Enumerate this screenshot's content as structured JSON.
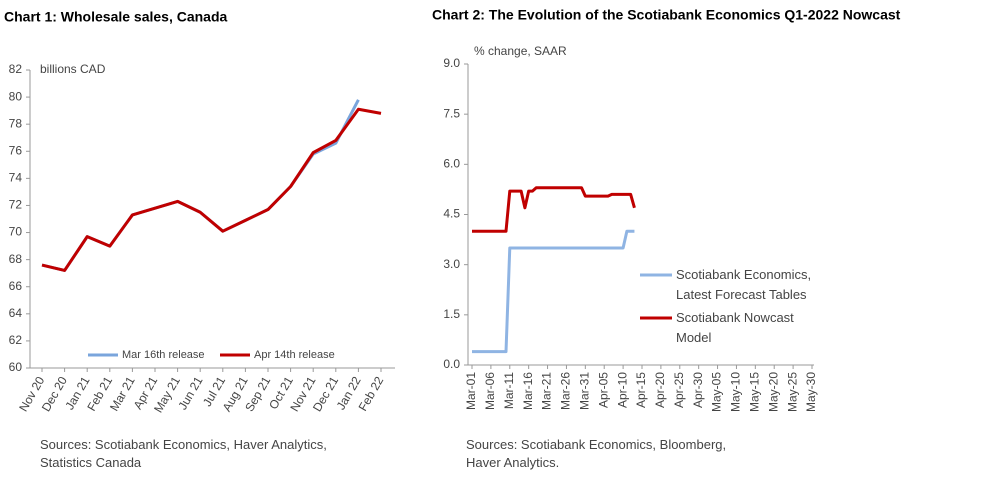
{
  "chart_data": [
    {
      "type": "line",
      "title": "Chart 1: Wholesale sales, Canada",
      "y_label": "billions CAD",
      "categories": [
        "Nov 20",
        "Dec 20",
        "Jan 21",
        "Feb 21",
        "Mar 21",
        "Apr 21",
        "May 21",
        "Jun 21",
        "Jul 21",
        "Aug 21",
        "Sep 21",
        "Oct 21",
        "Nov 21",
        "Dec 21",
        "Jan 22",
        "Feb 22"
      ],
      "series": [
        {
          "name": "Mar 16th release",
          "color": "#7aa5dc",
          "values": [
            67.6,
            67.2,
            69.7,
            69.0,
            71.3,
            71.8,
            72.3,
            71.5,
            70.1,
            70.9,
            71.7,
            73.4,
            75.8,
            76.6,
            79.8,
            null
          ]
        },
        {
          "name": "Apr 14th release",
          "color": "#c00000",
          "values": [
            67.6,
            67.2,
            69.7,
            69.0,
            71.3,
            71.8,
            72.3,
            71.5,
            70.1,
            70.9,
            71.7,
            73.4,
            75.9,
            76.8,
            79.1,
            78.8
          ]
        }
      ],
      "ylim": [
        60,
        82
      ],
      "yticks": [
        60,
        62,
        64,
        66,
        68,
        70,
        72,
        74,
        76,
        78,
        80,
        82
      ],
      "source": "Sources: Scotiabank Economics, Haver Analytics, Statistics Canada"
    },
    {
      "type": "line",
      "title": "Chart 2: The Evolution of the Scotiabank Economics Q1-2022 Nowcast",
      "y_label": "% change, SAAR",
      "x": [
        "Mar-01",
        "Mar-02",
        "Mar-03",
        "Mar-04",
        "Mar-05",
        "Mar-06",
        "Mar-07",
        "Mar-08",
        "Mar-09",
        "Mar-10",
        "Mar-11",
        "Mar-12",
        "Mar-13",
        "Mar-14",
        "Mar-15",
        "Mar-16",
        "Mar-17",
        "Mar-18",
        "Mar-19",
        "Mar-20",
        "Mar-21",
        "Mar-22",
        "Mar-23",
        "Mar-24",
        "Mar-25",
        "Mar-26",
        "Mar-27",
        "Mar-28",
        "Mar-29",
        "Mar-30",
        "Mar-31",
        "Apr-01",
        "Apr-02",
        "Apr-03",
        "Apr-04",
        "Apr-05",
        "Apr-06",
        "Apr-07",
        "Apr-08",
        "Apr-09",
        "Apr-10",
        "Apr-11",
        "Apr-12",
        "Apr-13"
      ],
      "series": [
        {
          "name": "Scotiabank Economics, Latest Forecast Tables",
          "color": "#8fb4e3",
          "values": [
            0.4,
            0.4,
            0.4,
            0.4,
            0.4,
            0.4,
            0.4,
            0.4,
            0.4,
            0.4,
            3.5,
            3.5,
            3.5,
            3.5,
            3.5,
            3.5,
            3.5,
            3.5,
            3.5,
            3.5,
            3.5,
            3.5,
            3.5,
            3.5,
            3.5,
            3.5,
            3.5,
            3.5,
            3.5,
            3.5,
            3.5,
            3.5,
            3.5,
            3.5,
            3.5,
            3.5,
            3.5,
            3.5,
            3.5,
            3.5,
            3.5,
            4,
            4,
            4
          ]
        },
        {
          "name": "Scotiabank Nowcast Model",
          "color": "#c00000",
          "values": [
            4,
            4,
            4,
            4,
            4,
            4,
            4,
            4,
            4,
            4,
            5.2,
            5.2,
            5.2,
            5.2,
            4.7,
            5.2,
            5.2,
            5.3,
            5.3,
            5.3,
            5.3,
            5.3,
            5.3,
            5.3,
            5.3,
            5.3,
            5.3,
            5.3,
            5.3,
            5.3,
            5.05,
            5.05,
            5.05,
            5.05,
            5.05,
            5.05,
            5.05,
            5.1,
            5.1,
            5.1,
            5.1,
            5.1,
            5.1,
            4.7
          ]
        }
      ],
      "xlim": [
        "Mar-01",
        "May-30"
      ],
      "xticks": [
        "Mar-01",
        "Mar-06",
        "Mar-11",
        "Mar-16",
        "Mar-21",
        "Mar-26",
        "Mar-31",
        "Apr-05",
        "Apr-10",
        "Apr-15",
        "Apr-20",
        "Apr-25",
        "Apr-30",
        "May-05",
        "May-10",
        "May-15",
        "May-20",
        "May-25",
        "May-30"
      ],
      "ylim": [
        0,
        9
      ],
      "yticks": [
        {
          "value": 0,
          "label": "0.0"
        },
        {
          "value": 1.5,
          "label": "1.5"
        },
        {
          "value": 3,
          "label": "3.0"
        },
        {
          "value": 4.5,
          "label": "4.5"
        },
        {
          "value": 6,
          "label": "6.0"
        },
        {
          "value": 7.5,
          "label": "7.5"
        },
        {
          "value": 9,
          "label": "9.0"
        }
      ],
      "source": "Sources: Scotiabank Economics, Bloomberg, Haver Analytics."
    }
  ]
}
